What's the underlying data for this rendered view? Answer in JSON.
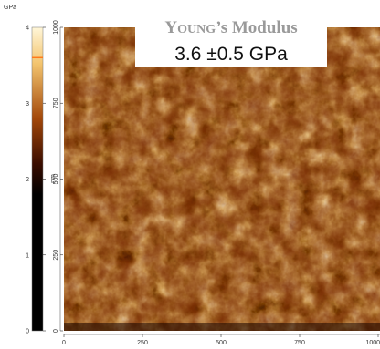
{
  "chart_data": {
    "type": "heatmap",
    "title_prefix": "Y",
    "title_smallcaps": "OUNG",
    "title_suffix": "’s Modulus",
    "value_label": "3.6 ±0.5 GPa",
    "colorbar": {
      "unit": "GPa",
      "min": 0,
      "max": 4,
      "ticks": [
        "0",
        "1",
        "2",
        "3",
        "4"
      ],
      "marker_value": 3.6,
      "colors": [
        "#000000",
        "#2a0800",
        "#5a1a02",
        "#8a3c08",
        "#bd6a16",
        "#e39a3a",
        "#f7cf7c",
        "#fff6d8"
      ]
    },
    "xaxis": {
      "ticks": [
        "0",
        "250",
        "500",
        "750",
        "1000"
      ],
      "range": [
        0,
        1000
      ]
    },
    "yaxis": {
      "unit": "nm",
      "ticks": [
        "0",
        "250",
        "500",
        "750",
        "1000"
      ],
      "range": [
        0,
        1000
      ]
    }
  }
}
